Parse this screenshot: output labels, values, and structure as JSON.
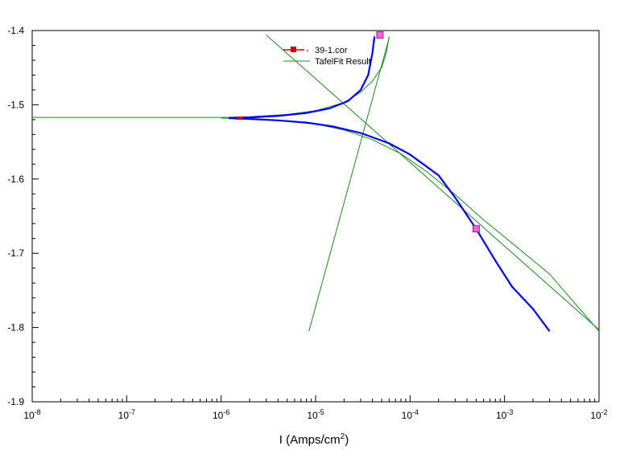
{
  "chart_data": {
    "type": "line",
    "title": "",
    "xlabel": "I (Amps/cm",
    "xlabel_sup": "2",
    "xlabel_close": ")",
    "ylabel": "",
    "xscale": "log",
    "xlim": [
      1e-08,
      0.01
    ],
    "ylim": [
      -1.9,
      -1.4
    ],
    "x_ticks": [
      {
        "value": 1e-08,
        "base": "10",
        "exp": "-8"
      },
      {
        "value": 1e-07,
        "base": "10",
        "exp": "-7"
      },
      {
        "value": 1e-06,
        "base": "10",
        "exp": "-6"
      },
      {
        "value": 1e-05,
        "base": "10",
        "exp": "-5"
      },
      {
        "value": 0.0001,
        "base": "10",
        "exp": "-4"
      },
      {
        "value": 0.001,
        "base": "10",
        "exp": "-3"
      },
      {
        "value": 0.01,
        "base": "10",
        "exp": "-2"
      }
    ],
    "y_ticks": [
      {
        "value": -1.4,
        "label": "-1.4"
      },
      {
        "value": -1.5,
        "label": "-1.5"
      },
      {
        "value": -1.6,
        "label": "-1.6"
      },
      {
        "value": -1.7,
        "label": "-1.7"
      },
      {
        "value": -1.8,
        "label": "-1.8"
      },
      {
        "value": -1.9,
        "label": "-1.9"
      }
    ],
    "grid": false,
    "legend_position": "top-center",
    "series": [
      {
        "name": "39-1.cor",
        "color": "#0000ee",
        "marker_color": "#cc0000",
        "points": [
          [
            4.2e-05,
            -1.408
          ],
          [
            4e-05,
            -1.43
          ],
          [
            3.6e-05,
            -1.46
          ],
          [
            3e-05,
            -1.48
          ],
          [
            2.2e-05,
            -1.495
          ],
          [
            1.4e-05,
            -1.505
          ],
          [
            8e-06,
            -1.511
          ],
          [
            4e-06,
            -1.515
          ],
          [
            2e-06,
            -1.517
          ],
          [
            1.2e-06,
            -1.518
          ],
          [
            2e-06,
            -1.519
          ],
          [
            4e-06,
            -1.521
          ],
          [
            8e-06,
            -1.524
          ],
          [
            1.5e-05,
            -1.529
          ],
          [
            3e-05,
            -1.538
          ],
          [
            6e-05,
            -1.552
          ],
          [
            0.0001,
            -1.567
          ],
          [
            0.0002,
            -1.595
          ],
          [
            0.0003,
            -1.625
          ],
          [
            0.0005,
            -1.667
          ],
          [
            0.0008,
            -1.71
          ],
          [
            0.0012,
            -1.745
          ],
          [
            0.002,
            -1.775
          ],
          [
            0.003,
            -1.805
          ]
        ]
      },
      {
        "name": "TafelFit Result",
        "color": "#1a8a1a",
        "lines": [
          [
            [
              1e-08,
              -1.517
            ],
            [
              1e-07,
              -1.517
            ],
            [
              1e-06,
              -1.517
            ],
            [
              2e-06,
              -1.516
            ],
            [
              5e-06,
              -1.513
            ],
            [
              1e-05,
              -1.508
            ],
            [
              2e-05,
              -1.497
            ],
            [
              3e-05,
              -1.483
            ],
            [
              4e-05,
              -1.468
            ],
            [
              5e-05,
              -1.45
            ],
            [
              5.6e-05,
              -1.43
            ],
            [
              6e-05,
              -1.408
            ]
          ],
          [
            [
              1e-06,
              -1.518
            ],
            [
              2e-06,
              -1.519
            ],
            [
              5e-06,
              -1.522
            ],
            [
              1e-05,
              -1.526
            ],
            [
              2e-05,
              -1.534
            ],
            [
              4e-05,
              -1.547
            ],
            [
              8e-05,
              -1.566
            ],
            [
              0.00015,
              -1.59
            ],
            [
              0.0003,
              -1.621
            ],
            [
              0.0006,
              -1.655
            ],
            [
              0.001,
              -1.678
            ],
            [
              0.003,
              -1.728
            ],
            [
              0.01,
              -1.805
            ]
          ],
          [
            [
              8.5e-06,
              -1.805
            ],
            [
              6e-05,
              -1.41
            ]
          ],
          [
            [
              3e-06,
              -1.406
            ],
            [
              0.01,
              -1.803
            ]
          ]
        ]
      }
    ],
    "fit_markers": [
      {
        "x": 4.8e-05,
        "y": -1.406,
        "color": "#ff66cc"
      },
      {
        "x": 0.0005,
        "y": -1.667,
        "color": "#ff66cc"
      }
    ]
  }
}
